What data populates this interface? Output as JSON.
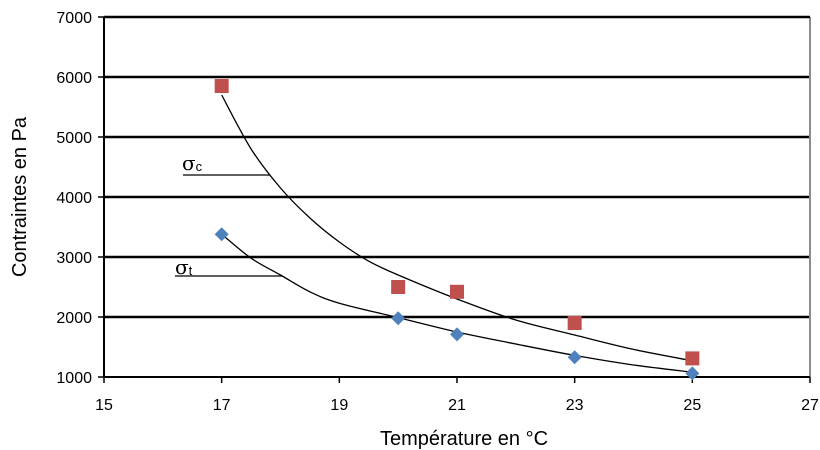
{
  "chart_data": {
    "type": "scatter",
    "xlabel": "Température en °C",
    "ylabel": "Contraintes en Pa",
    "xlim": [
      15,
      27
    ],
    "ylim": [
      1000,
      7000
    ],
    "xticks": [
      15,
      17,
      19,
      21,
      23,
      25,
      27
    ],
    "yticks": [
      1000,
      2000,
      3000,
      4000,
      5000,
      6000,
      7000
    ],
    "grid": "horizontal",
    "series": [
      {
        "name": "σc",
        "marker": "square",
        "color": "#c0504d",
        "points": [
          {
            "x": 17,
            "y": 5850
          },
          {
            "x": 20,
            "y": 2500
          },
          {
            "x": 21,
            "y": 2420
          },
          {
            "x": 23,
            "y": 1900
          },
          {
            "x": 25,
            "y": 1310
          }
        ],
        "trend": [
          {
            "x": 17,
            "y": 5700
          },
          {
            "x": 17.5,
            "y": 4800
          },
          {
            "x": 18,
            "y": 4150
          },
          {
            "x": 18.5,
            "y": 3650
          },
          {
            "x": 19,
            "y": 3250
          },
          {
            "x": 19.5,
            "y": 2930
          },
          {
            "x": 20,
            "y": 2700
          },
          {
            "x": 21,
            "y": 2300
          },
          {
            "x": 22,
            "y": 1950
          },
          {
            "x": 23,
            "y": 1700
          },
          {
            "x": 24,
            "y": 1460
          },
          {
            "x": 25,
            "y": 1270
          }
        ]
      },
      {
        "name": "σt",
        "marker": "diamond",
        "color": "#4f81bd",
        "points": [
          {
            "x": 17,
            "y": 3380
          },
          {
            "x": 20,
            "y": 1980
          },
          {
            "x": 21,
            "y": 1710
          },
          {
            "x": 23,
            "y": 1330
          },
          {
            "x": 25,
            "y": 1060
          }
        ],
        "trend": [
          {
            "x": 17,
            "y": 3380
          },
          {
            "x": 17.5,
            "y": 2980
          },
          {
            "x": 18,
            "y": 2700
          },
          {
            "x": 18.5,
            "y": 2420
          },
          {
            "x": 19,
            "y": 2230
          },
          {
            "x": 20,
            "y": 1990
          },
          {
            "x": 21,
            "y": 1750
          },
          {
            "x": 22,
            "y": 1550
          },
          {
            "x": 23,
            "y": 1360
          },
          {
            "x": 24,
            "y": 1200
          },
          {
            "x": 25,
            "y": 1080
          }
        ]
      }
    ],
    "annotations": [
      {
        "text": "σc",
        "sigma": "σ",
        "sub": "c",
        "series": 0,
        "leader_x": 17.85,
        "leader_y": 4360
      },
      {
        "text": "σt",
        "sigma": "σ",
        "sub": "t",
        "series": 1,
        "leader_x": 18.05,
        "leader_y": 2330
      }
    ]
  }
}
